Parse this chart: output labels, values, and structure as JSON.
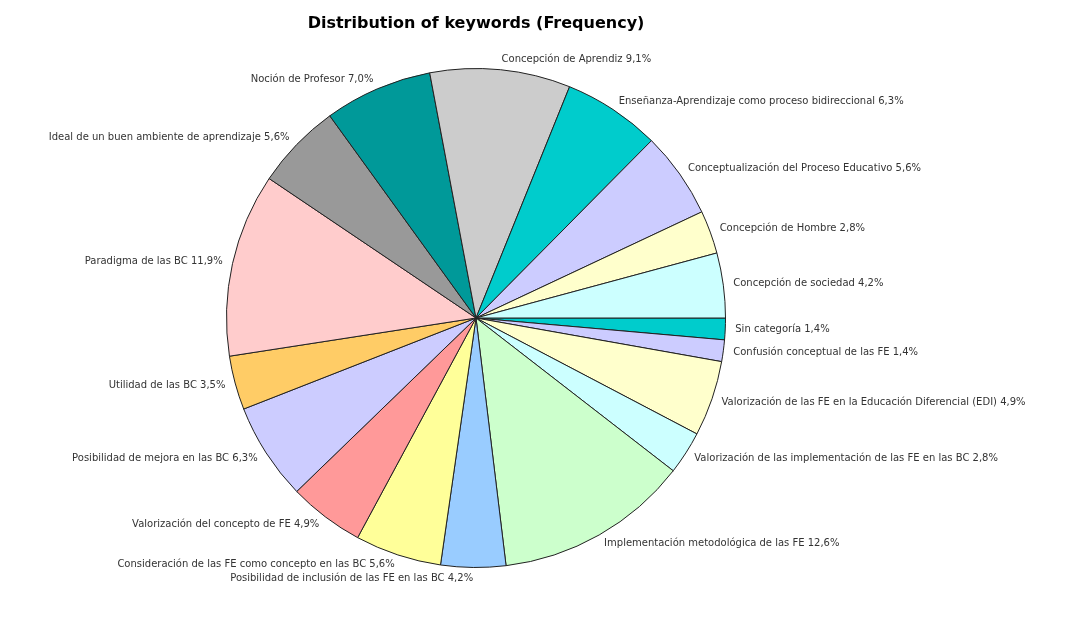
{
  "chart_data": {
    "type": "pie",
    "title": "Distribution of keywords (Frequency)",
    "categories": [
      "Sin categoría",
      "Confusión conceptual de las FE",
      "Valorización de las FE en la Educación Diferencial (EDI)",
      "Valorización de las implementación de las FE en las BC",
      "Implementación metodológica de las FE",
      "Posibilidad de inclusión de las FE en las BC",
      "Consideración de las FE como concepto en las BC",
      "Valorización del concepto de FE",
      "Posibilidad de mejora en las BC",
      "Utilidad de las BC",
      "Paradigma de las BC",
      "Ideal de un buen ambiente de aprendizaje",
      "Noción de Profesor",
      "Concepción de Aprendiz",
      "Enseñanza-Aprendizaje como proceso bidireccional",
      "Conceptualización del Proceso Educativo",
      "Concepción de Hombre",
      "Concepción de sociedad"
    ],
    "values": [
      1.4,
      1.4,
      4.9,
      2.8,
      12.6,
      4.2,
      5.6,
      4.9,
      6.3,
      3.5,
      11.9,
      5.6,
      7.0,
      9.1,
      6.3,
      5.6,
      2.8,
      4.2
    ],
    "value_labels": [
      "1,4%",
      "1,4%",
      "4,9%",
      "2,8%",
      "12,6%",
      "4,2%",
      "5,6%",
      "4,9%",
      "6,3%",
      "3,5%",
      "11,9%",
      "5,6%",
      "7,0%",
      "9,1%",
      "6,3%",
      "5,6%",
      "2,8%",
      "4,2%"
    ],
    "colors": [
      "#00cccc",
      "#ccccff",
      "#ffffcc",
      "#ccffff",
      "#ccffcc",
      "#99ccff",
      "#ffff99",
      "#ff9999",
      "#ccccff",
      "#ffcc66",
      "#ffcccc",
      "#999999",
      "#009999",
      "#cccccc",
      "#00cccc",
      "#ccccff",
      "#ffffcc",
      "#ccffff"
    ],
    "legend": false
  }
}
